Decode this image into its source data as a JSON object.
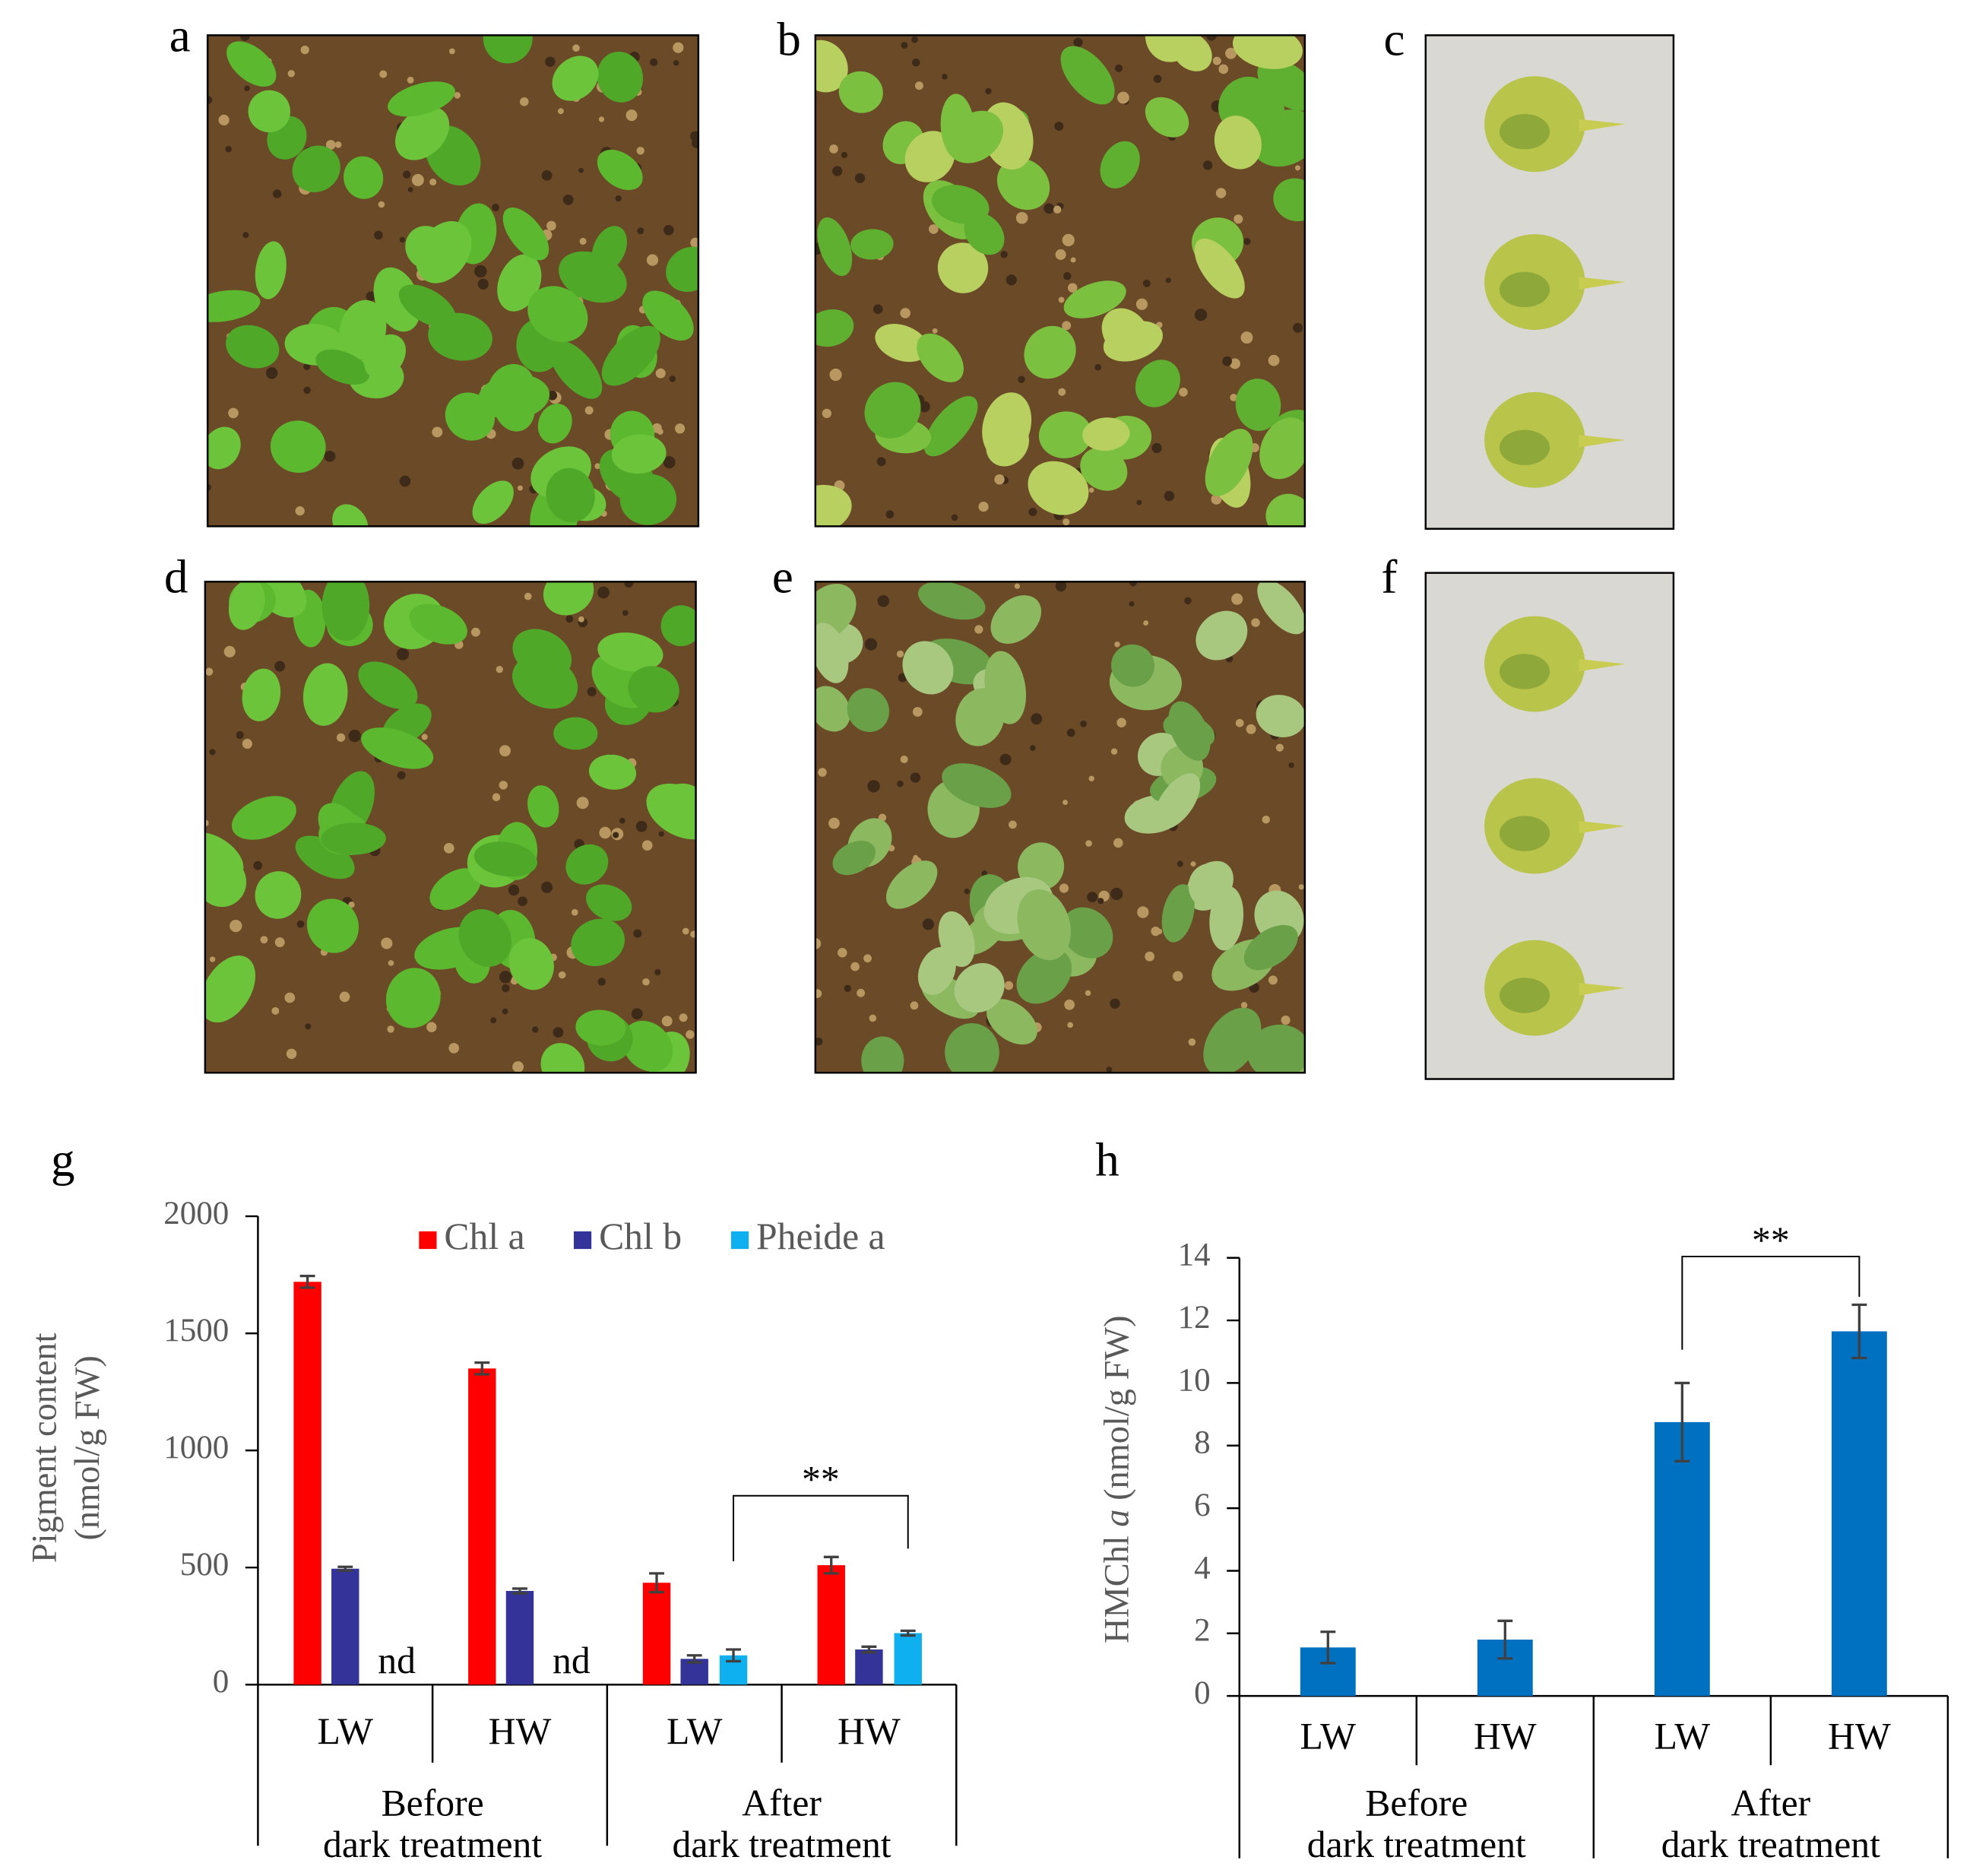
{
  "figure_labels": [
    "a",
    "b",
    "c",
    "d",
    "e",
    "f"
  ],
  "chart_data": [
    {
      "type": "bar",
      "panel": "g",
      "y_label": [
        "Pigment content",
        "(nmol/g FW)"
      ],
      "categories": [
        "LW",
        "HW",
        "LW",
        "HW"
      ],
      "groups": [
        [
          "Before",
          "dark treatment"
        ],
        [
          "After",
          "dark treatment"
        ]
      ],
      "series": [
        {
          "name": "Chl a",
          "color": "#ff0000",
          "values": [
            1720,
            1350,
            435,
            510
          ],
          "errors": [
            25,
            25,
            40,
            35
          ]
        },
        {
          "name": "Chl b",
          "color": "#333399",
          "values": [
            495,
            400,
            110,
            150
          ],
          "errors": [
            8,
            10,
            15,
            12
          ]
        },
        {
          "name": "Pheide a",
          "color": "#0fb0f0",
          "values": [
            null,
            null,
            125,
            220
          ],
          "errors": [
            null,
            null,
            25,
            10
          ],
          "value_labels": [
            "nd",
            "nd",
            null,
            null
          ]
        }
      ],
      "ylim": [
        0,
        2000
      ],
      "yticks": [
        0,
        500,
        1000,
        1500,
        2000
      ],
      "annotations": [
        {
          "text": "**"
        }
      ]
    },
    {
      "type": "bar",
      "panel": "h",
      "y_label": [
        "HMChl",
        "a",
        "(nmol/g FW)"
      ],
      "categories": [
        "LW",
        "HW",
        "LW",
        "HW"
      ],
      "groups": [
        [
          "Before",
          "dark treatment"
        ],
        [
          "After",
          "dark treatment"
        ]
      ],
      "color": "#0070c0",
      "values": [
        1.55,
        1.8,
        8.75,
        11.65
      ],
      "errors": [
        0.5,
        0.6,
        1.25,
        0.85
      ],
      "ylim": [
        0,
        14
      ],
      "yticks": [
        0,
        2,
        4,
        6,
        8,
        10,
        12,
        14
      ],
      "annotations": [
        {
          "text": "**"
        }
      ]
    }
  ]
}
